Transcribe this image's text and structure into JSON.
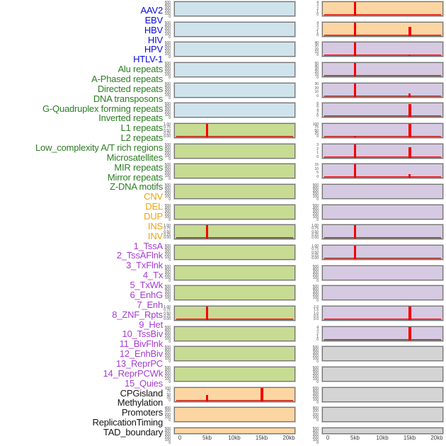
{
  "chart_data": {
    "type": "area",
    "title": "",
    "x_axis": {
      "tick_labels": [
        "0",
        "5kb",
        "10kb",
        "15kb",
        "20kb"
      ],
      "tick_kb": [
        0,
        5,
        10,
        15,
        20
      ],
      "unit": "kb",
      "range_kb": [
        0,
        20
      ]
    },
    "columns": 2,
    "rows_per_column": 22,
    "tick_sets": {
      "n500": [
        "500",
        "400",
        "300",
        "200",
        "100",
        "0"
      ],
      "n400": [
        "400",
        "300",
        "200",
        "100",
        "0"
      ],
      "n100": [
        "100",
        "75",
        "50",
        "25",
        "0"
      ],
      "n50": [
        "50",
        "40",
        "30",
        "20",
        "10",
        "0"
      ],
      "n40": [
        "40",
        "30",
        "20",
        "10",
        "0"
      ],
      "n30": [
        "30",
        "20",
        "10",
        "0"
      ],
      "n15": [
        "15",
        "10",
        "5",
        "0"
      ],
      "n8": [
        "8",
        "6",
        "4",
        "2",
        "0"
      ],
      "n4": [
        "4",
        "3",
        "2",
        "1",
        "0"
      ],
      "n3": [
        "3",
        "2",
        "1",
        "0"
      ],
      "frac1": [
        "1.00",
        "0.75",
        "0.50",
        "0.25",
        "0.00"
      ],
      "f2": [
        "2.0",
        "1.5",
        "1.0",
        "0.5",
        "0.0"
      ]
    },
    "tracks": [
      {
        "name": "AAV2",
        "group": "virus",
        "ticks": "n500",
        "peaks": [],
        "baseline": false
      },
      {
        "name": "EBV",
        "group": "virus",
        "ticks": "n500",
        "peaks": [],
        "baseline": false
      },
      {
        "name": "HBV",
        "group": "virus",
        "ticks": "n500",
        "peaks": [],
        "baseline": false
      },
      {
        "name": "HIV",
        "group": "virus",
        "ticks": "n500",
        "peaks": [],
        "baseline": false
      },
      {
        "name": "HPV",
        "group": "virus",
        "ticks": "n500",
        "peaks": [],
        "baseline": false
      },
      {
        "name": "HTLV-1",
        "group": "virus",
        "ticks": "n500",
        "peaks": [],
        "baseline": false
      },
      {
        "name": "Alu repeats",
        "group": "repeats",
        "ticks": "frac1",
        "peaks": [
          [
            5,
            1,
            2.5
          ]
        ],
        "baseline": true
      },
      {
        "name": "A-Phased repeats",
        "group": "repeats",
        "ticks": "n500",
        "peaks": [],
        "baseline": false
      },
      {
        "name": "Directed repeats",
        "group": "repeats",
        "ticks": "n500",
        "peaks": [],
        "baseline": false
      },
      {
        "name": "DNA transposons",
        "group": "repeats",
        "ticks": "n500",
        "peaks": [],
        "baseline": false
      },
      {
        "name": "G-Quadruplex forming repeats",
        "group": "repeats",
        "ticks": "n500",
        "peaks": [],
        "baseline": false
      },
      {
        "name": "Inverted repeats",
        "group": "repeats",
        "ticks": "frac1",
        "peaks": [
          [
            5,
            1,
            2.5
          ]
        ],
        "baseline": true
      },
      {
        "name": "L1 repeats",
        "group": "repeats",
        "ticks": "n500",
        "peaks": [],
        "baseline": false
      },
      {
        "name": "L2 repeats",
        "group": "repeats",
        "ticks": "n500",
        "peaks": [],
        "baseline": false
      },
      {
        "name": "Low_complexity A/T rich regions",
        "group": "repeats",
        "ticks": "n500",
        "peaks": [],
        "baseline": false
      },
      {
        "name": "Microsatellites",
        "group": "repeats",
        "ticks": "frac1",
        "peaks": [
          [
            5,
            1,
            2.5
          ]
        ],
        "baseline": true
      },
      {
        "name": "MIR repeats",
        "group": "repeats",
        "ticks": "n500",
        "peaks": [],
        "baseline": false
      },
      {
        "name": "Mirror repeats",
        "group": "repeats",
        "ticks": "n500",
        "peaks": [],
        "baseline": false
      },
      {
        "name": "Z-DNA motifs",
        "group": "repeats",
        "ticks": "n500",
        "peaks": [],
        "baseline": false
      },
      {
        "name": "CNV",
        "group": "sv",
        "ticks": "n100",
        "peaks": [
          [
            5,
            0.45,
            2.5
          ],
          [
            15,
            1,
            4
          ]
        ],
        "baseline": true
      },
      {
        "name": "DEL",
        "group": "sv",
        "ticks": "n400",
        "peaks": [],
        "baseline": false
      },
      {
        "name": "DUP",
        "group": "sv",
        "ticks": "n500",
        "peaks": [],
        "baseline": false
      },
      {
        "name": "INS",
        "group": "sv",
        "ticks": "n4",
        "peaks": [
          [
            5,
            1,
            3
          ]
        ],
        "baseline": true
      },
      {
        "name": "INV",
        "group": "sv",
        "ticks": "n4",
        "peaks": [
          [
            5,
            1,
            3
          ],
          [
            15,
            0.7,
            4
          ]
        ],
        "baseline": true
      },
      {
        "name": "1_TssA",
        "group": "chromatin",
        "ticks": "n40",
        "peaks": [
          [
            5,
            1,
            3
          ],
          [
            15,
            0.1,
            2.5
          ]
        ],
        "baseline": true
      },
      {
        "name": "2_TssAFlnk",
        "group": "chromatin",
        "ticks": "n50",
        "peaks": [
          [
            5,
            1,
            3
          ]
        ],
        "baseline": true
      },
      {
        "name": "3_TxFlnk",
        "group": "chromatin",
        "ticks": "n30",
        "peaks": [
          [
            5,
            1,
            3
          ],
          [
            15,
            0.25,
            3
          ]
        ],
        "baseline": true
      },
      {
        "name": "4_Tx",
        "group": "chromatin",
        "ticks": "n8",
        "peaks": [
          [
            15,
            0.95,
            4
          ]
        ],
        "baseline": true
      },
      {
        "name": "5_TxWk",
        "group": "chromatin",
        "ticks": "n100",
        "peaks": [
          [
            5,
            0.12,
            3
          ],
          [
            15,
            1,
            4
          ]
        ],
        "baseline": true
      },
      {
        "name": "6_EnhG",
        "group": "chromatin",
        "ticks": "n3",
        "peaks": [
          [
            5,
            1,
            3
          ],
          [
            15,
            0.8,
            4
          ]
        ],
        "baseline": true
      },
      {
        "name": "7_Enh",
        "group": "chromatin",
        "ticks": "n15",
        "peaks": [
          [
            5,
            1,
            3
          ],
          [
            15,
            0.25,
            3.5
          ]
        ],
        "baseline": true
      },
      {
        "name": "8_ZNF_Rpts",
        "group": "chromatin",
        "ticks": "n500",
        "peaks": [],
        "baseline": false
      },
      {
        "name": "9_Het",
        "group": "chromatin",
        "ticks": "n500",
        "peaks": [],
        "baseline": false
      },
      {
        "name": "10_TssBiv",
        "group": "chromatin",
        "ticks": "frac1",
        "peaks": [
          [
            5,
            1,
            3
          ]
        ],
        "baseline": true
      },
      {
        "name": "11_BivFlnk",
        "group": "chromatin",
        "ticks": "frac1",
        "peaks": [
          [
            5,
            1,
            3
          ]
        ],
        "baseline": true
      },
      {
        "name": "12_EnhBiv",
        "group": "chromatin",
        "ticks": "n500",
        "peaks": [],
        "baseline": false
      },
      {
        "name": "13_ReprPC",
        "group": "chromatin",
        "ticks": "n500",
        "peaks": [],
        "baseline": false
      },
      {
        "name": "14_ReprPCWk",
        "group": "chromatin",
        "ticks": "f2",
        "peaks": [
          [
            15,
            1,
            4
          ]
        ],
        "baseline": true
      },
      {
        "name": "15_Quies",
        "group": "chromatin",
        "ticks": "n4",
        "peaks": [
          [
            15,
            1,
            4
          ]
        ],
        "baseline": true
      },
      {
        "name": "CPGisland",
        "group": "other",
        "ticks": "n500",
        "peaks": [],
        "baseline": false
      },
      {
        "name": "Methylation",
        "group": "other",
        "ticks": "n500",
        "peaks": [],
        "baseline": false
      },
      {
        "name": "Promoters",
        "group": "other",
        "ticks": "n500",
        "peaks": [],
        "baseline": false
      },
      {
        "name": "ReplicationTiming",
        "group": "other",
        "ticks": "n400",
        "peaks": [],
        "baseline": false
      },
      {
        "name": "TAD_boundary",
        "group": "other",
        "ticks": "n500",
        "peaks": [],
        "baseline": false
      }
    ]
  },
  "colors": {
    "page_bg": "#ffffff",
    "peak_red": "#f50000",
    "baseline_red": "#ee0000",
    "axis_line": "#7a6a55",
    "plot_border": "#737373",
    "plot_outer_border": "#c9c9c9",
    "tick_text": "#4f4f4f",
    "xaxis_text": "#3d3d3d",
    "label": {
      "virus": "#0a0ae0",
      "repeats": "#2b7d21",
      "sv": "#f3a20b",
      "chromatin": "#a73bd4",
      "other": "#141414"
    },
    "bg": {
      "virus": "#cfe3ec",
      "repeats": "#c7db93",
      "sv": "#fcd6a2",
      "chromatin": "#d6c9e2",
      "other": "#d4d4d4"
    }
  }
}
